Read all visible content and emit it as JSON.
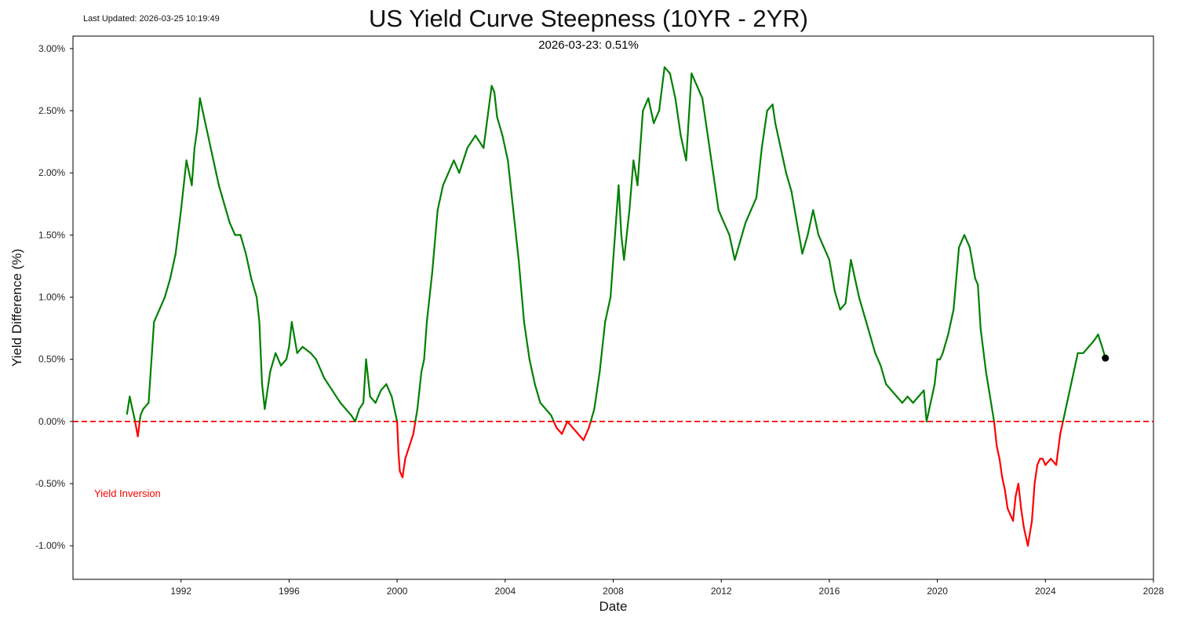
{
  "header": {
    "last_updated": "Last Updated: 2026-03-25 10:19:49",
    "latest_annotation": "2026-03-23: 0.51%"
  },
  "annotations": {
    "inversion_label": "Yield Inversion"
  },
  "colors": {
    "positive": "#008000",
    "negative": "#ff0000",
    "zero_line": "#ff0000",
    "latest_marker": "#000000"
  },
  "chart_data": {
    "type": "line",
    "title": "US Yield Curve Steepness (10YR - 2YR)",
    "xlabel": "Date",
    "ylabel": "Yield Difference (%)",
    "xlim": [
      1988.0,
      2028.0
    ],
    "ylim": [
      -1.27,
      3.1
    ],
    "x_ticks": [
      1992,
      1996,
      2000,
      2004,
      2008,
      2012,
      2016,
      2020,
      2024,
      2028
    ],
    "y_ticks": [
      -1.0,
      -0.5,
      0.0,
      0.5,
      1.0,
      1.5,
      2.0,
      2.5,
      3.0
    ],
    "y_tick_labels": [
      "-1.00%",
      "-0.50%",
      "0.00%",
      "0.50%",
      "1.00%",
      "1.50%",
      "2.00%",
      "2.50%",
      "3.00%"
    ],
    "grid": false,
    "reference_line": {
      "y": 0.0,
      "style": "dashed"
    },
    "latest_point": {
      "x": 2026.22,
      "y": 0.51
    },
    "series": [
      {
        "x": [
          1990.0,
          1990.1,
          1990.2,
          1990.3,
          1990.4,
          1990.5,
          1990.6,
          1990.8,
          1991.0,
          1991.2,
          1991.4,
          1991.6,
          1991.8,
          1992.0,
          1992.2,
          1992.4,
          1992.5,
          1992.6,
          1992.7,
          1992.8,
          1993.0,
          1993.2,
          1993.4,
          1993.6,
          1993.8,
          1994.0,
          1994.2,
          1994.4,
          1994.6,
          1994.8,
          1994.9,
          1995.0,
          1995.1,
          1995.3,
          1995.5,
          1995.7,
          1995.9,
          1996.0,
          1996.1,
          1996.3,
          1996.5,
          1996.8,
          1997.0,
          1997.3,
          1997.6,
          1997.9,
          1998.1,
          1998.3,
          1998.45,
          1998.6,
          1998.75,
          1998.85,
          1999.0,
          1999.2,
          1999.4,
          1999.6,
          1999.8,
          2000.0,
          2000.05,
          2000.1,
          2000.2,
          2000.3,
          2000.45,
          2000.6,
          2000.75,
          2000.9,
          2001.0,
          2001.1,
          2001.3,
          2001.5,
          2001.7,
          2001.9,
          2002.1,
          2002.3,
          2002.6,
          2002.9,
          2003.2,
          2003.5,
          2003.6,
          2003.7,
          2003.9,
          2004.1,
          2004.3,
          2004.5,
          2004.7,
          2004.9,
          2005.1,
          2005.3,
          2005.5,
          2005.7,
          2005.9,
          2006.1,
          2006.3,
          2006.5,
          2006.7,
          2006.9,
          2007.1,
          2007.3,
          2007.5,
          2007.7,
          2007.9,
          2008.0,
          2008.1,
          2008.2,
          2008.3,
          2008.4,
          2008.6,
          2008.75,
          2008.9,
          2009.1,
          2009.3,
          2009.5,
          2009.7,
          2009.9,
          2010.1,
          2010.3,
          2010.5,
          2010.7,
          2010.9,
          2011.1,
          2011.3,
          2011.5,
          2011.7,
          2011.9,
          2012.1,
          2012.3,
          2012.5,
          2012.7,
          2012.9,
          2013.1,
          2013.3,
          2013.5,
          2013.7,
          2013.9,
          2014.0,
          2014.2,
          2014.4,
          2014.6,
          2014.8,
          2015.0,
          2015.2,
          2015.4,
          2015.6,
          2015.8,
          2016.0,
          2016.2,
          2016.4,
          2016.6,
          2016.8,
          2016.9,
          2017.1,
          2017.3,
          2017.5,
          2017.7,
          2017.9,
          2018.1,
          2018.3,
          2018.5,
          2018.7,
          2018.9,
          2019.1,
          2019.3,
          2019.5,
          2019.6,
          2019.7,
          2019.9,
          2020.0,
          2020.1,
          2020.2,
          2020.4,
          2020.6,
          2020.8,
          2021.0,
          2021.2,
          2021.4,
          2021.5,
          2021.6,
          2021.8,
          2021.95,
          2022.1,
          2022.2,
          2022.3,
          2022.4,
          2022.5,
          2022.6,
          2022.8,
          2022.9,
          2023.0,
          2023.1,
          2023.2,
          2023.35,
          2023.5,
          2023.6,
          2023.7,
          2023.8,
          2023.9,
          2024.0,
          2024.2,
          2024.4,
          2024.55,
          2024.7,
          2024.85,
          2025.0,
          2025.2,
          2025.4,
          2025.6,
          2025.8,
          2025.95,
          2026.1,
          2026.22
        ],
        "values": [
          0.06,
          0.2,
          0.1,
          0.0,
          -0.12,
          0.05,
          0.1,
          0.15,
          0.8,
          0.9,
          1.0,
          1.15,
          1.35,
          1.7,
          2.1,
          1.9,
          2.2,
          2.35,
          2.6,
          2.5,
          2.3,
          2.1,
          1.9,
          1.75,
          1.6,
          1.5,
          1.5,
          1.35,
          1.15,
          1.0,
          0.8,
          0.3,
          0.1,
          0.4,
          0.55,
          0.45,
          0.5,
          0.6,
          0.8,
          0.55,
          0.6,
          0.55,
          0.5,
          0.35,
          0.25,
          0.15,
          0.1,
          0.05,
          0.0,
          0.1,
          0.15,
          0.5,
          0.2,
          0.15,
          0.25,
          0.3,
          0.2,
          0.0,
          -0.25,
          -0.4,
          -0.45,
          -0.3,
          -0.2,
          -0.1,
          0.1,
          0.4,
          0.5,
          0.8,
          1.2,
          1.7,
          1.9,
          2.0,
          2.1,
          2.0,
          2.2,
          2.3,
          2.2,
          2.7,
          2.65,
          2.45,
          2.3,
          2.1,
          1.7,
          1.3,
          0.8,
          0.5,
          0.3,
          0.15,
          0.1,
          0.05,
          -0.05,
          -0.1,
          0.0,
          -0.05,
          -0.1,
          -0.15,
          -0.05,
          0.1,
          0.4,
          0.8,
          1.0,
          1.3,
          1.6,
          1.9,
          1.5,
          1.3,
          1.7,
          2.1,
          1.9,
          2.5,
          2.6,
          2.4,
          2.5,
          2.85,
          2.8,
          2.6,
          2.3,
          2.1,
          2.8,
          2.7,
          2.6,
          2.3,
          2.0,
          1.7,
          1.6,
          1.5,
          1.3,
          1.45,
          1.6,
          1.7,
          1.8,
          2.2,
          2.5,
          2.55,
          2.4,
          2.2,
          2.0,
          1.85,
          1.6,
          1.35,
          1.5,
          1.7,
          1.5,
          1.4,
          1.3,
          1.05,
          0.9,
          0.95,
          1.3,
          1.2,
          1.0,
          0.85,
          0.7,
          0.55,
          0.45,
          0.3,
          0.25,
          0.2,
          0.15,
          0.2,
          0.15,
          0.2,
          0.25,
          0.0,
          0.1,
          0.3,
          0.5,
          0.5,
          0.55,
          0.7,
          0.9,
          1.4,
          1.5,
          1.4,
          1.15,
          1.1,
          0.75,
          0.4,
          0.2,
          0.0,
          -0.2,
          -0.3,
          -0.45,
          -0.55,
          -0.7,
          -0.8,
          -0.6,
          -0.5,
          -0.7,
          -0.85,
          -1.0,
          -0.8,
          -0.5,
          -0.35,
          -0.3,
          -0.3,
          -0.35,
          -0.3,
          -0.35,
          -0.1,
          0.05,
          0.2,
          0.35,
          0.55,
          0.55,
          0.6,
          0.65,
          0.7,
          0.6,
          0.51
        ]
      }
    ]
  }
}
